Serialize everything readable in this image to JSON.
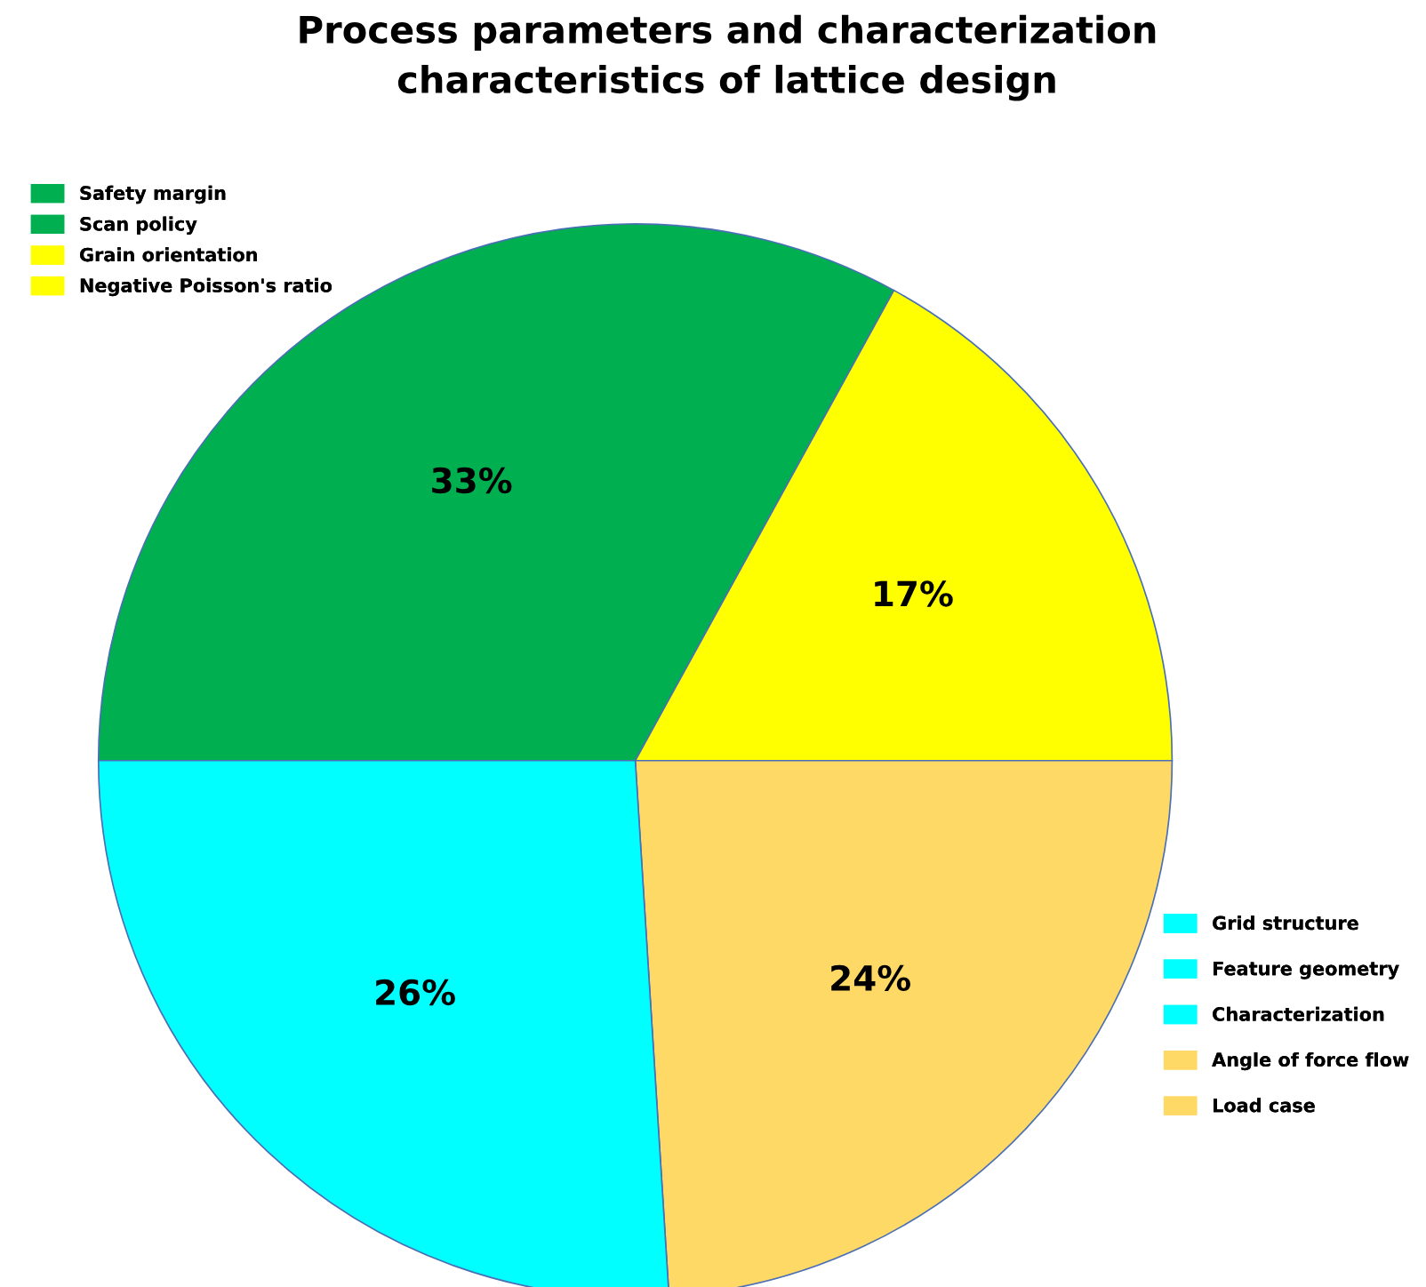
{
  "chart_data": [
    {
      "type": "pie",
      "title": "Process parameters and characterization\ncharacteristics of lattice design",
      "categories": [
        null,
        null,
        null,
        null
      ],
      "values": [
        33,
        17,
        24,
        26
      ],
      "value_labels": [
        "33%",
        "17%",
        "24%",
        "26%"
      ],
      "colors": [
        "#00b050",
        "#ffff00",
        "#ffd966",
        "#00ffff"
      ]
    },
    {
      "type": "other",
      "categories": [
        "Safety margin",
        "Scan policy",
        "Grain orientation",
        "Negative Poisson's ratio"
      ],
      "colors": [
        "#00b050",
        "#00b050",
        "#ffff00",
        "#ffff00"
      ]
    },
    {
      "type": "other",
      "categories": [
        "Grid structure",
        "Feature geometry",
        "Characterization",
        "Angle of force flow",
        "Load case"
      ],
      "colors": [
        "#00ffff",
        "#00ffff",
        "#00ffff",
        "#ffd966",
        "#ffd966"
      ]
    }
  ]
}
